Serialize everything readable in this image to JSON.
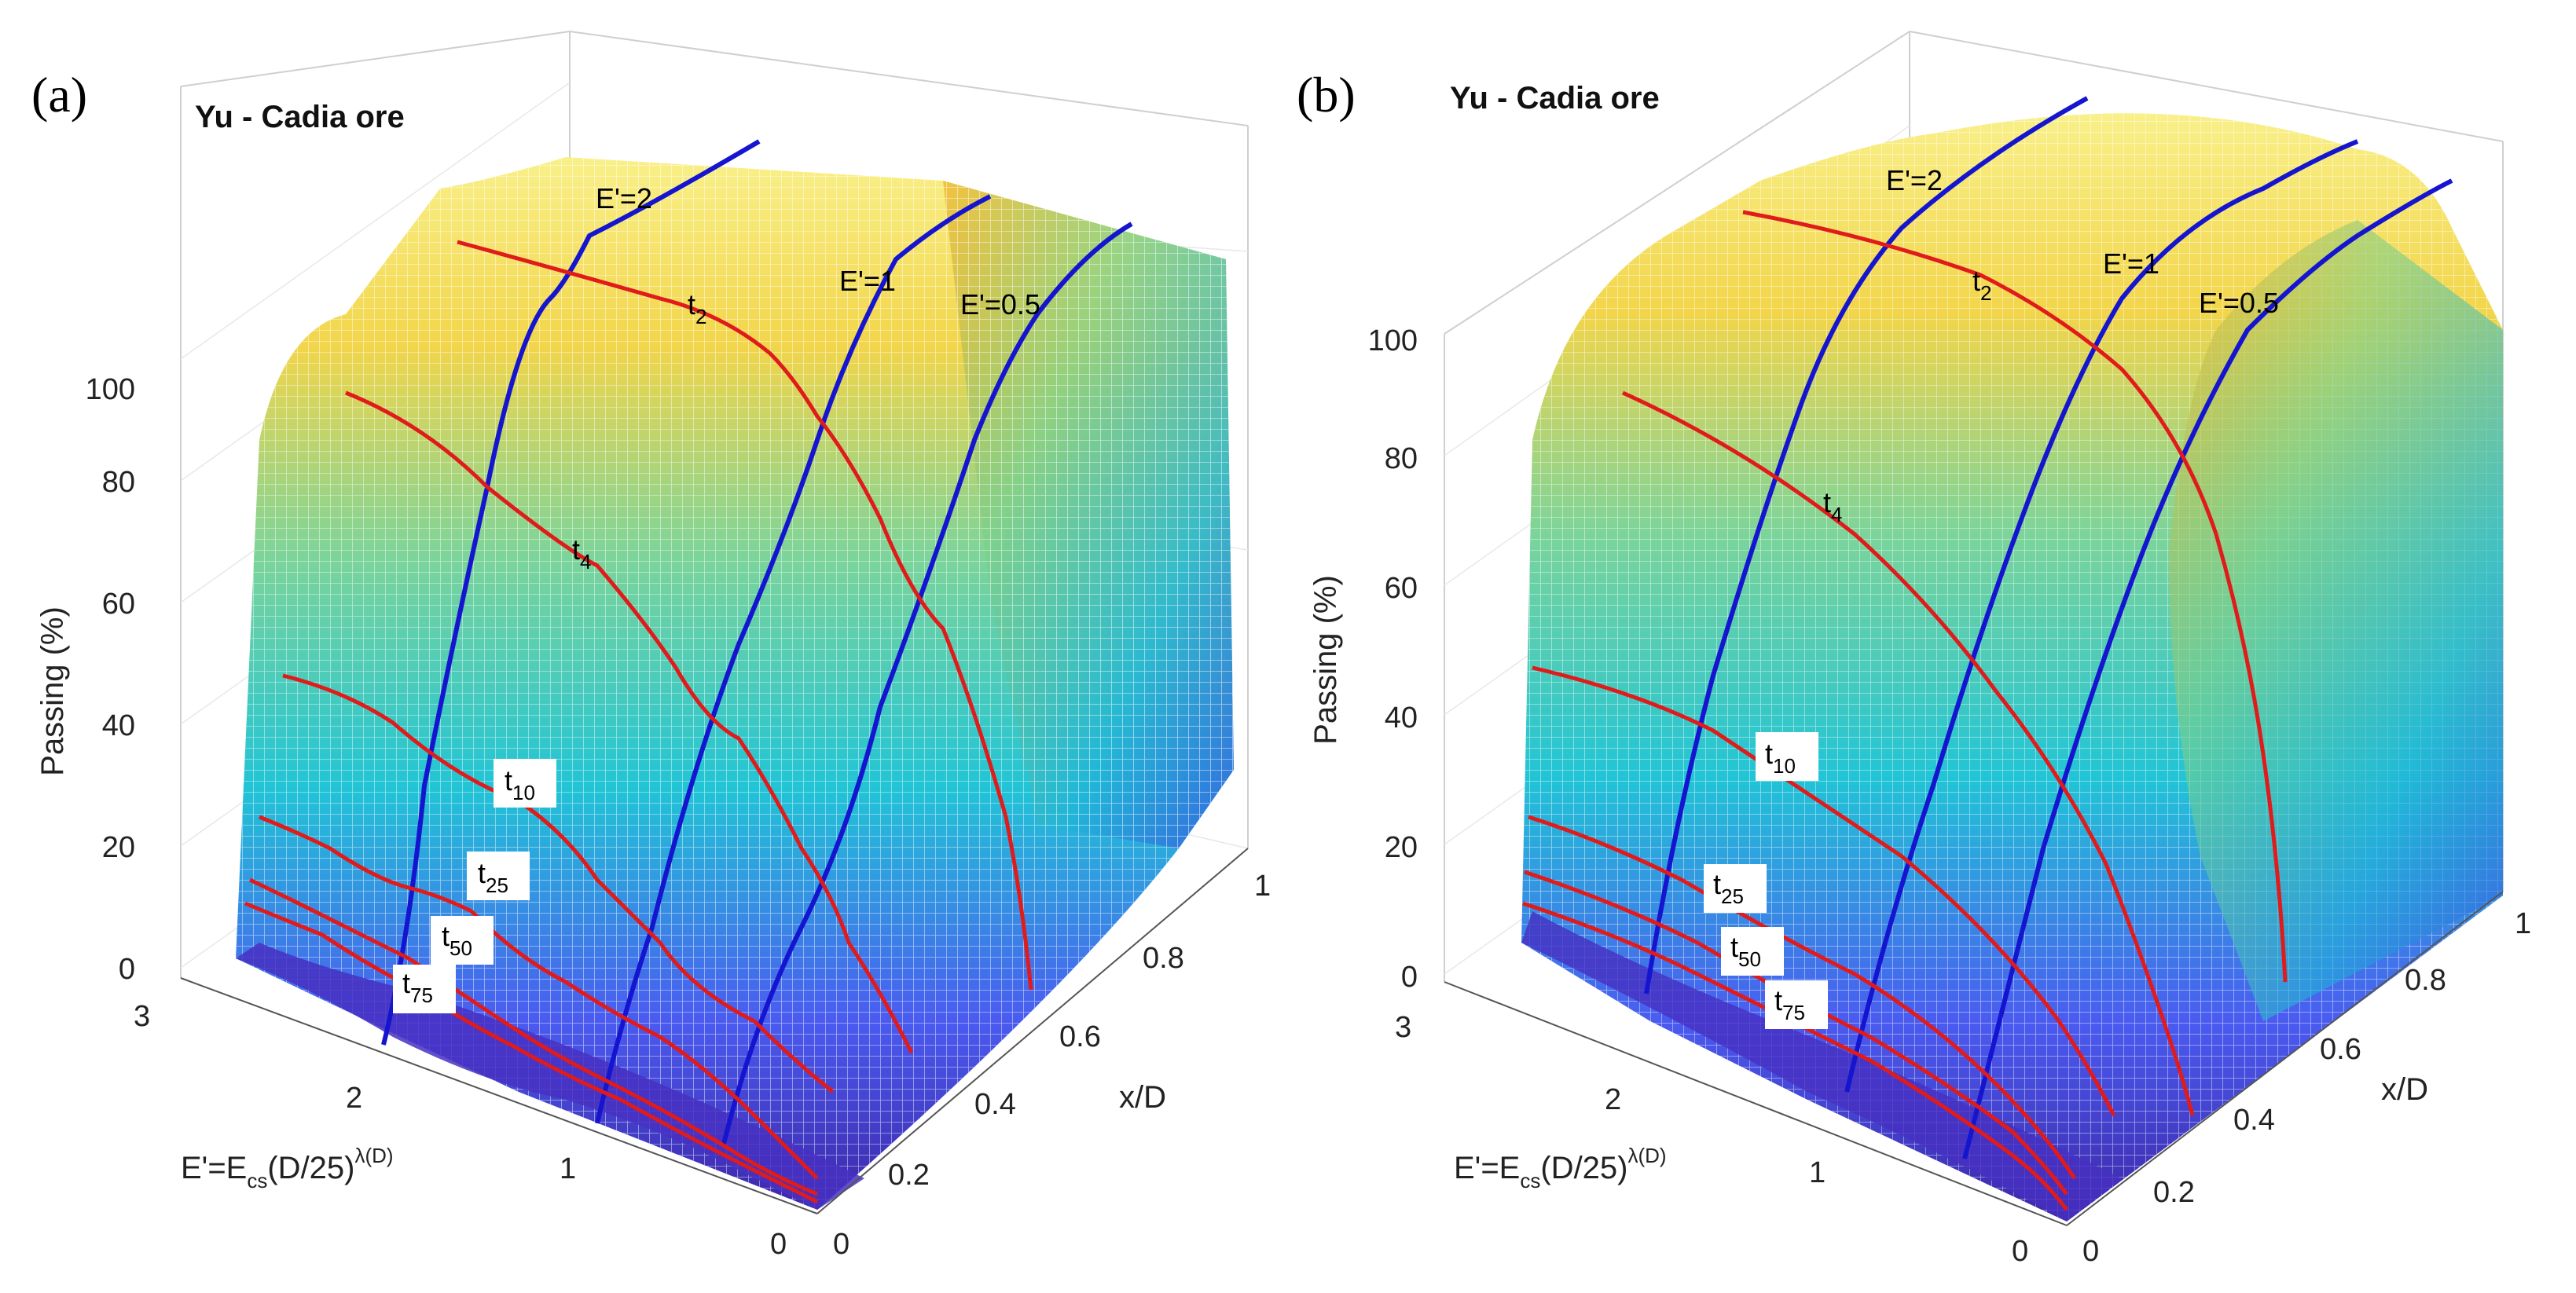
{
  "chart_data": [
    {
      "panel": "(a)",
      "type": "surface",
      "title": "Yu - Cadia ore",
      "zlabel": "Passing (%)",
      "xlabel": "x/D",
      "ylabel_main": "E'=E",
      "ylabel_sub": "cs",
      "ylabel_tail": "(D/25)",
      "ylabel_sup": "λ(D)",
      "zlim": [
        0,
        100
      ],
      "xlim": [
        0,
        1
      ],
      "ylim": [
        0,
        3
      ],
      "z_ticks": [
        "0",
        "20",
        "40",
        "60",
        "80",
        "100"
      ],
      "x_ticks": [
        "0",
        "0.2",
        "0.4",
        "0.6",
        "0.8",
        "1"
      ],
      "y_ticks": [
        "0",
        "1",
        "2",
        "3"
      ],
      "e_lines": [
        {
          "label": "E'=2",
          "e": 2
        },
        {
          "label": "E'=1",
          "e": 1
        },
        {
          "label": "E'=0.5",
          "e": 0.5
        }
      ],
      "t_lines": [
        {
          "label": "t",
          "sub": "2",
          "t": 2
        },
        {
          "label": "t",
          "sub": "4",
          "t": 4
        },
        {
          "label": "t",
          "sub": "10",
          "t": 10
        },
        {
          "label": "t",
          "sub": "25",
          "t": 25
        },
        {
          "label": "t",
          "sub": "50",
          "t": 50
        },
        {
          "label": "t",
          "sub": "75",
          "t": 75
        }
      ],
      "colors": {
        "e_line": "#1515d0",
        "t_line": "#e01b1b",
        "low": "#3d26a8",
        "mid": "#21c4d6",
        "high": "#f9e822"
      }
    },
    {
      "panel": "(b)",
      "type": "surface",
      "title": "Yu - Cadia ore",
      "zlabel": "Passing (%)",
      "xlabel": "x/D",
      "ylabel_main": "E'=E",
      "ylabel_sub": "cs",
      "ylabel_tail": "(D/25)",
      "ylabel_sup": "λ(D)",
      "zlim": [
        0,
        100
      ],
      "xlim": [
        0,
        1
      ],
      "ylim": [
        0,
        3
      ],
      "z_ticks": [
        "0",
        "20",
        "40",
        "60",
        "80",
        "100"
      ],
      "x_ticks": [
        "0",
        "0.2",
        "0.4",
        "0.6",
        "0.8",
        "1"
      ],
      "y_ticks": [
        "0",
        "1",
        "2",
        "3"
      ],
      "e_lines": [
        {
          "label": "E'=2",
          "e": 2
        },
        {
          "label": "E'=1",
          "e": 1
        },
        {
          "label": "E'=0.5",
          "e": 0.5
        }
      ],
      "t_lines": [
        {
          "label": "t",
          "sub": "2",
          "t": 2
        },
        {
          "label": "t",
          "sub": "4",
          "t": 4
        },
        {
          "label": "t",
          "sub": "10",
          "t": 10
        },
        {
          "label": "t",
          "sub": "25",
          "t": 25
        },
        {
          "label": "t",
          "sub": "50",
          "t": 50
        },
        {
          "label": "t",
          "sub": "75",
          "t": 75
        }
      ],
      "colors": {
        "e_line": "#1515d0",
        "t_line": "#e01b1b",
        "low": "#3d26a8",
        "mid": "#21c4d6",
        "high": "#f9e822"
      }
    }
  ]
}
